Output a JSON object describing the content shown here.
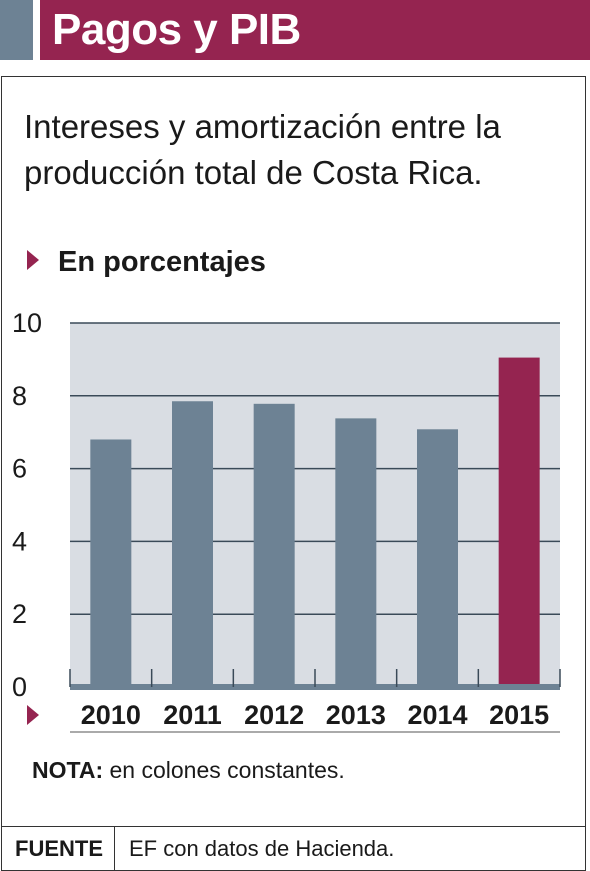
{
  "header": {
    "title": "Pagos y PIB"
  },
  "subtitle": "Intereses y amortización entre la producción total de Costa Rica.",
  "unit_label": "En porcentajes",
  "note": {
    "label": "NOTA:",
    "text": "en colones constantes."
  },
  "source": {
    "label": "FUENTE",
    "text": "EF con datos de Hacienda."
  },
  "colors": {
    "bar": "#6d8294",
    "highlight": "#952450",
    "plot_background": "#d9dde3",
    "grid": "#3a4a58",
    "header": "#952450"
  },
  "chart_data": {
    "type": "bar",
    "categories": [
      "2010",
      "2011",
      "2012",
      "2013",
      "2014",
      "2015"
    ],
    "values": [
      6.8,
      7.85,
      7.78,
      7.38,
      7.08,
      9.05
    ],
    "highlight_index": 5,
    "title": "",
    "xlabel": "",
    "ylabel": "En porcentajes",
    "ylim": [
      0,
      10
    ],
    "yticks": [
      0,
      2,
      4,
      6,
      8,
      10
    ],
    "grid": true,
    "legend": "none"
  }
}
